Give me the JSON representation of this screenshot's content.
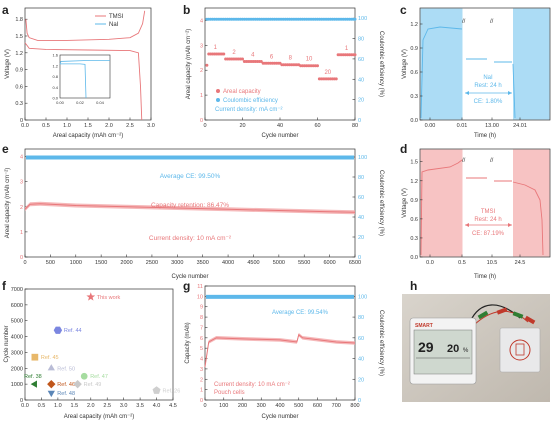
{
  "colors": {
    "red": "#e8777a",
    "blue": "#5db8ea",
    "pink_bg": "#f6b9b8",
    "blue_bg": "#9dd6f3",
    "axis": "#333333"
  },
  "chart_data": [
    {
      "id": "a",
      "letter": "a",
      "type": "line",
      "xlabel": "Areal capacity (mAh cm⁻²)",
      "ylabel": "Voltage (V)",
      "xlim": [
        0,
        3.0
      ],
      "ylim": [
        0,
        2.0
      ],
      "xticks": [
        "0.0",
        "0.5",
        "1.0",
        "1.5",
        "2.0",
        "2.5",
        "3.0"
      ],
      "yticks": [
        "0",
        "0.3",
        "0.6",
        "0.9",
        "1.2",
        "1.5",
        "1.8"
      ],
      "legend": [
        {
          "name": "TMSI"
        },
        {
          "name": "NaI"
        }
      ],
      "series": [
        {
          "name": "TMSI charge",
          "color": "red",
          "points": [
            [
              0.02,
              1.8
            ],
            [
              0.05,
              1.55
            ],
            [
              0.1,
              1.47
            ],
            [
              0.3,
              1.42
            ],
            [
              1.0,
              1.42
            ],
            [
              2.0,
              1.44
            ],
            [
              2.5,
              1.47
            ],
            [
              2.7,
              1.55
            ],
            [
              2.8,
              1.72
            ],
            [
              2.85,
              1.95
            ]
          ]
        },
        {
          "name": "TMSI discharge",
          "color": "red",
          "points": [
            [
              0.0,
              1.38
            ],
            [
              0.1,
              1.28
            ],
            [
              0.5,
              1.26
            ],
            [
              1.5,
              1.25
            ],
            [
              2.5,
              1.24
            ],
            [
              2.7,
              1.2
            ],
            [
              2.75,
              0.6
            ],
            [
              2.78,
              0.0
            ]
          ]
        }
      ],
      "inset": {
        "xlim": [
          0,
          0.05
        ],
        "ylim": [
          0,
          1.6
        ],
        "xticks": [
          "0.00",
          "0.02",
          "0.04"
        ],
        "yticks": [
          "0.0",
          "0.4",
          "0.8",
          "1.2",
          "1.6"
        ],
        "series": [
          {
            "name": "NaI charge",
            "color": "blue",
            "points": [
              [
                0.0,
                1.27
              ],
              [
                0.001,
                1.36
              ],
              [
                0.03,
                1.4
              ],
              [
                0.05,
                1.4
              ]
            ]
          },
          {
            "name": "NaI discharge",
            "color": "blue",
            "points": [
              [
                0.0,
                1.27
              ],
              [
                0.02,
                1.27
              ],
              [
                0.025,
                1.25
              ],
              [
                0.026,
                0.0
              ]
            ]
          }
        ]
      }
    },
    {
      "id": "b",
      "letter": "b",
      "type": "scatter",
      "xlabel": "Cycle number",
      "ylabel": "Areal capacity (mAh cm⁻²)",
      "y2label": "Coulombic efficiency (%)",
      "xlim": [
        0,
        80
      ],
      "ylim": [
        0,
        4.5
      ],
      "y2lim": [
        0,
        110
      ],
      "xticks": [
        "0",
        "20",
        "40",
        "60",
        "80"
      ],
      "yticks": [
        "0",
        "1",
        "2",
        "3",
        "4"
      ],
      "y2ticks": [
        "0",
        "20",
        "40",
        "60",
        "80",
        "100"
      ],
      "legend": [
        {
          "name": "Areal capacity",
          "color": "red"
        },
        {
          "name": "Coulombic efficiency",
          "color": "blue"
        }
      ],
      "note": "Current density: mA cm⁻²",
      "rate_labels": [
        "1",
        "2",
        "4",
        "6",
        "8",
        "10",
        "20",
        "1"
      ],
      "capacity_steps": [
        {
          "x": [
            1,
            10
          ],
          "y": 2.65
        },
        {
          "x": [
            11,
            20
          ],
          "y": 2.45
        },
        {
          "x": [
            21,
            30
          ],
          "y": 2.35
        },
        {
          "x": [
            31,
            40
          ],
          "y": 2.28
        },
        {
          "x": [
            41,
            50
          ],
          "y": 2.22
        },
        {
          "x": [
            51,
            60
          ],
          "y": 2.18
        },
        {
          "x": [
            61,
            70
          ],
          "y": 1.65
        },
        {
          "x": [
            71,
            80
          ],
          "y": 2.62
        }
      ],
      "ce_value": 99
    },
    {
      "id": "c",
      "letter": "c",
      "type": "line",
      "xlabel": "Time (h)",
      "ylabel": "Voltage (V)",
      "xticks": [
        "0.00",
        "0.01",
        "13.00",
        "24.01"
      ],
      "yticks": [
        "0.0",
        "0.3",
        "0.6",
        "0.9",
        "1.2"
      ],
      "ylim": [
        0,
        1.4
      ],
      "note_lines": [
        "NaI",
        "Rest: 24 h",
        "CE: 1.80%"
      ]
    },
    {
      "id": "d",
      "letter": "d",
      "type": "line",
      "xlabel": "Time (h)",
      "ylabel": "Voltage (V)",
      "xticks": [
        "0.0",
        "0.5",
        "10.5",
        "24.5"
      ],
      "yticks": [
        "0.0",
        "0.3",
        "0.6",
        "0.9",
        "1.2",
        "1.5"
      ],
      "ylim": [
        0,
        1.7
      ],
      "note_lines": [
        "TMSI",
        "Rest: 24 h",
        "CE: 87.19%"
      ]
    },
    {
      "id": "e",
      "letter": "e",
      "type": "scatter",
      "xlabel": "Cycle number",
      "ylabel": "Areal capacity (mAh cm⁻²)",
      "y2label": "Coulombic efficiency (%)",
      "xlim": [
        0,
        6500
      ],
      "ylim": [
        0,
        4.3
      ],
      "y2lim": [
        0,
        108
      ],
      "xticks": [
        "0",
        "500",
        "1000",
        "1500",
        "2000",
        "2500",
        "3000",
        "3500",
        "4000",
        "4500",
        "5000",
        "5500",
        "6000",
        "6500"
      ],
      "yticks": [
        "0",
        "1",
        "2",
        "3",
        "4"
      ],
      "y2ticks": [
        "0",
        "20",
        "40",
        "60",
        "80",
        "100"
      ],
      "texts": [
        "Average CE: 99.50%",
        "Capacity retention: 86.47%",
        "Current density: 10 mA cm⁻²"
      ],
      "capacity_curve": [
        [
          0,
          1.9
        ],
        [
          100,
          2.1
        ],
        [
          300,
          2.12
        ],
        [
          1000,
          2.05
        ],
        [
          2000,
          2.0
        ],
        [
          3000,
          1.95
        ],
        [
          4000,
          1.9
        ],
        [
          5000,
          1.85
        ],
        [
          6000,
          1.8
        ],
        [
          6500,
          1.78
        ]
      ],
      "ce_value": 99.5
    },
    {
      "id": "f",
      "letter": "f",
      "type": "scatter",
      "xlabel": "Areal capacity (mAh cm⁻²)",
      "ylabel": "Cycle number",
      "xlim": [
        0,
        4.5
      ],
      "ylim": [
        0,
        7000
      ],
      "xticks": [
        "0.0",
        "0.5",
        "1.0",
        "1.5",
        "2.0",
        "2.5",
        "3.0",
        "3.5",
        "4.0",
        "4.5"
      ],
      "yticks": [
        "0",
        "1000",
        "2000",
        "3000",
        "4000",
        "5000",
        "6000",
        "7000"
      ],
      "points": [
        {
          "label": "This work",
          "x": 2.0,
          "y": 6500,
          "shape": "star",
          "color": "#e8777a"
        },
        {
          "label": "Ref. 44",
          "x": 1.0,
          "y": 4400,
          "shape": "hexagon",
          "color": "#7b86e0"
        },
        {
          "label": "Ref. 45",
          "x": 0.3,
          "y": 2700,
          "shape": "square",
          "color": "#e8b86a"
        },
        {
          "label": "Ref. 50",
          "x": 0.8,
          "y": 2000,
          "shape": "triangle-up",
          "color": "#b9bcd6"
        },
        {
          "label": "Ref. 47",
          "x": 1.8,
          "y": 1500,
          "shape": "circle",
          "color": "#a6dca0"
        },
        {
          "label": "Ref. 38",
          "x": 0.3,
          "y": 1000,
          "shape": "triangle-left",
          "color": "#2e7d32"
        },
        {
          "label": "Ref. 46",
          "x": 0.8,
          "y": 1000,
          "shape": "diamond",
          "color": "#c0561b"
        },
        {
          "label": "Ref. 49",
          "x": 1.6,
          "y": 1000,
          "shape": "diamond",
          "color": "#c9c9c9"
        },
        {
          "label": "Ref. 48",
          "x": 0.8,
          "y": 450,
          "shape": "triangle-down",
          "color": "#5b86b7"
        },
        {
          "label": "Ref. 26",
          "x": 4.0,
          "y": 600,
          "shape": "pentagon",
          "color": "#cfcfcf"
        }
      ]
    },
    {
      "id": "g",
      "letter": "g",
      "type": "scatter",
      "xlabel": "Cycle number",
      "ylabel": "Capacity (mAh)",
      "y2label": "Coulombic efficiency (%)",
      "xlim": [
        0,
        800
      ],
      "ylim": [
        0,
        11
      ],
      "y2lim": [
        0,
        110
      ],
      "xticks": [
        "0",
        "100",
        "200",
        "300",
        "400",
        "500",
        "600",
        "700",
        "800"
      ],
      "yticks": [
        "0",
        "1",
        "2",
        "3",
        "4",
        "5",
        "6",
        "7",
        "8",
        "9",
        "10",
        "11"
      ],
      "y2ticks": [
        "0",
        "20",
        "40",
        "60",
        "80",
        "100"
      ],
      "texts": [
        "Average CE: 99.54%",
        "Current density: 10 mA cm⁻²",
        "Pouch cells"
      ],
      "capacity_curve": [
        [
          0,
          3.2
        ],
        [
          20,
          5.6
        ],
        [
          60,
          6.0
        ],
        [
          200,
          5.9
        ],
        [
          400,
          5.8
        ],
        [
          490,
          5.6
        ],
        [
          500,
          6.3
        ],
        [
          520,
          6.0
        ],
        [
          700,
          5.6
        ],
        [
          800,
          5.5
        ]
      ],
      "ce_value": 99.54
    }
  ],
  "photo_h": {
    "letter": "h",
    "device_brand": "SMART",
    "readout_top": "29",
    "readout_mid": "20",
    "readout_unit": "%"
  }
}
